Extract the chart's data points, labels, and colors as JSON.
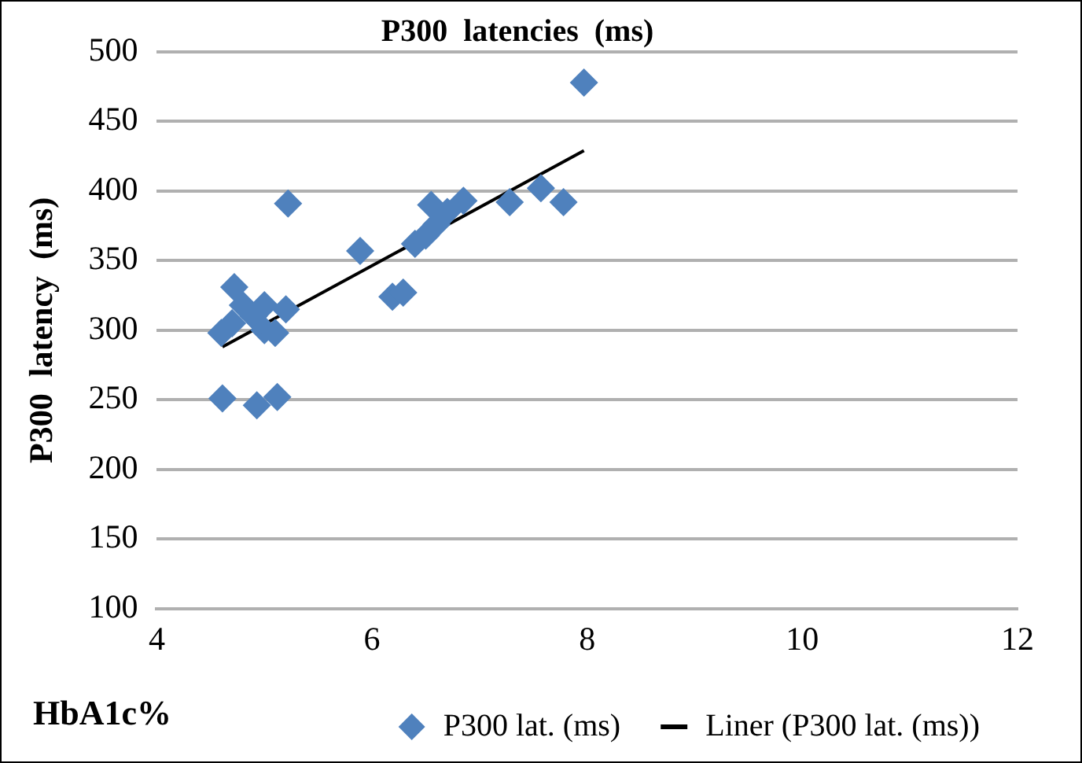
{
  "chart_data": {
    "type": "scatter",
    "title": "P300  latencies  (ms)",
    "xlabel": "HbA1c%",
    "ylabel": "P300  latency  (ms)",
    "xlim": [
      4,
      12
    ],
    "xticks": [
      4,
      6,
      8,
      10,
      12
    ],
    "ylim": [
      100,
      500
    ],
    "yticks": [
      100,
      150,
      200,
      250,
      300,
      350,
      400,
      450,
      500
    ],
    "grid": "y",
    "legend": "bottom",
    "marker": "diamond",
    "series": [
      {
        "name": "P300 lat. (ms)",
        "color": "#4f81bd",
        "x": [
          7.97,
          5.22,
          5.89,
          4.72,
          4.6,
          4.7,
          4.8,
          4.9,
          5.0,
          5.0,
          5.1,
          5.2,
          4.61,
          4.93,
          5.12,
          6.19,
          6.29,
          6.4,
          6.5,
          6.6,
          6.55,
          6.7,
          6.85,
          7.28,
          7.57,
          7.78
        ],
        "values": [
          478,
          391,
          357,
          331,
          298,
          305,
          318,
          310,
          300,
          318,
          298,
          315,
          251,
          246,
          252,
          324,
          327,
          362,
          368,
          376,
          390,
          385,
          393,
          392,
          402,
          392
        ]
      },
      {
        "name": "Liner (P300 lat. (ms))",
        "type": "line",
        "color": "#000000",
        "line_style": "solid",
        "marker": "none",
        "x": [
          4.61,
          7.97
        ],
        "values": [
          288,
          429
        ]
      }
    ]
  }
}
